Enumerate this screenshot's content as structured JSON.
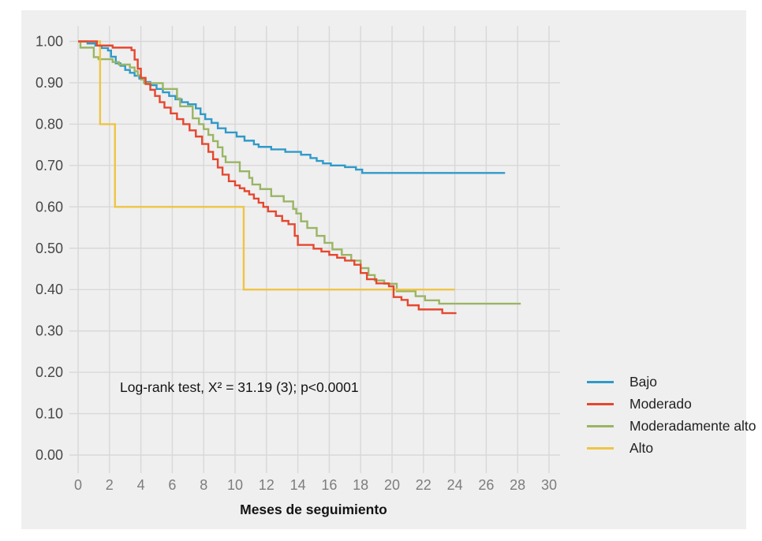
{
  "figure": {
    "panel_bg": "#EFEFEF",
    "grid_color": "#D8D8D8",
    "page_bg": "#FFFFFF"
  },
  "chart_data": {
    "type": "line",
    "subtype": "kaplan-meier-step",
    "xlabel": "Meses de seguimiento",
    "ylabel": "",
    "annotation": "Log-rank test, X² = 31.19 (3); p<0.0001",
    "xlim": [
      0,
      30
    ],
    "ylim": [
      0.0,
      1.0
    ],
    "x_ticks": [
      0,
      2,
      4,
      6,
      8,
      10,
      12,
      14,
      16,
      18,
      20,
      22,
      24,
      26,
      28,
      30
    ],
    "y_ticks": [
      1.0,
      0.9,
      0.8,
      0.7,
      0.6,
      0.5,
      0.4,
      0.3,
      0.2,
      0.1,
      0.0
    ],
    "grid": true,
    "legend_position": "right",
    "series": [
      {
        "name": "Bajo",
        "color": "#2F9AC9",
        "points": [
          [
            0,
            1.0
          ],
          [
            0.6,
            0.995
          ],
          [
            1.1,
            0.99
          ],
          [
            1.5,
            0.984
          ],
          [
            1.9,
            0.978
          ],
          [
            2.1,
            0.963
          ],
          [
            2.4,
            0.947
          ],
          [
            2.7,
            0.941
          ],
          [
            3.0,
            0.931
          ],
          [
            3.3,
            0.924
          ],
          [
            3.6,
            0.917
          ],
          [
            3.9,
            0.91
          ],
          [
            4.2,
            0.902
          ],
          [
            4.6,
            0.894
          ],
          [
            5.0,
            0.885
          ],
          [
            5.4,
            0.877
          ],
          [
            5.8,
            0.868
          ],
          [
            6.2,
            0.86
          ],
          [
            6.6,
            0.853
          ],
          [
            7.0,
            0.848
          ],
          [
            7.5,
            0.838
          ],
          [
            7.8,
            0.824
          ],
          [
            8.1,
            0.812
          ],
          [
            8.5,
            0.803
          ],
          [
            8.9,
            0.79
          ],
          [
            9.4,
            0.78
          ],
          [
            10.1,
            0.77
          ],
          [
            10.6,
            0.76
          ],
          [
            11.2,
            0.751
          ],
          [
            11.5,
            0.745
          ],
          [
            12.3,
            0.739
          ],
          [
            13.2,
            0.733
          ],
          [
            14.2,
            0.726
          ],
          [
            14.8,
            0.718
          ],
          [
            15.2,
            0.711
          ],
          [
            15.6,
            0.705
          ],
          [
            16.1,
            0.7
          ],
          [
            17.0,
            0.696
          ],
          [
            17.7,
            0.69
          ],
          [
            18.1,
            0.682
          ],
          [
            27.2,
            0.682
          ]
        ]
      },
      {
        "name": "Moderado",
        "color": "#E5472F",
        "points": [
          [
            0,
            1.0
          ],
          [
            1.2,
            0.99
          ],
          [
            2.2,
            0.985
          ],
          [
            3.4,
            0.979
          ],
          [
            3.6,
            0.956
          ],
          [
            3.8,
            0.934
          ],
          [
            4.0,
            0.912
          ],
          [
            4.3,
            0.897
          ],
          [
            4.6,
            0.883
          ],
          [
            4.9,
            0.868
          ],
          [
            5.2,
            0.853
          ],
          [
            5.5,
            0.84
          ],
          [
            5.9,
            0.826
          ],
          [
            6.3,
            0.812
          ],
          [
            6.7,
            0.8
          ],
          [
            7.1,
            0.785
          ],
          [
            7.5,
            0.77
          ],
          [
            7.9,
            0.752
          ],
          [
            8.3,
            0.733
          ],
          [
            8.6,
            0.715
          ],
          [
            8.9,
            0.695
          ],
          [
            9.2,
            0.678
          ],
          [
            9.6,
            0.662
          ],
          [
            10.0,
            0.652
          ],
          [
            10.3,
            0.645
          ],
          [
            10.6,
            0.638
          ],
          [
            10.9,
            0.63
          ],
          [
            11.2,
            0.62
          ],
          [
            11.5,
            0.61
          ],
          [
            11.8,
            0.6
          ],
          [
            12.1,
            0.589
          ],
          [
            12.6,
            0.578
          ],
          [
            13.0,
            0.566
          ],
          [
            13.4,
            0.558
          ],
          [
            13.8,
            0.53
          ],
          [
            14.0,
            0.508
          ],
          [
            15.0,
            0.499
          ],
          [
            15.5,
            0.492
          ],
          [
            16.0,
            0.484
          ],
          [
            16.5,
            0.477
          ],
          [
            17.0,
            0.47
          ],
          [
            17.6,
            0.46
          ],
          [
            18.0,
            0.44
          ],
          [
            18.4,
            0.425
          ],
          [
            19.0,
            0.415
          ],
          [
            19.8,
            0.408
          ],
          [
            20.1,
            0.382
          ],
          [
            20.6,
            0.375
          ],
          [
            21.0,
            0.362
          ],
          [
            21.7,
            0.352
          ],
          [
            23.2,
            0.343
          ],
          [
            24.1,
            0.343
          ]
        ]
      },
      {
        "name": "Moderadamente alto",
        "color": "#9AB564",
        "points": [
          [
            0,
            1.0
          ],
          [
            0.15,
            0.985
          ],
          [
            1.0,
            0.962
          ],
          [
            1.3,
            0.957
          ],
          [
            2.2,
            0.95
          ],
          [
            2.6,
            0.944
          ],
          [
            3.3,
            0.937
          ],
          [
            3.6,
            0.928
          ],
          [
            3.8,
            0.918
          ],
          [
            4.0,
            0.908
          ],
          [
            4.2,
            0.899
          ],
          [
            5.4,
            0.885
          ],
          [
            6.3,
            0.862
          ],
          [
            6.5,
            0.843
          ],
          [
            7.3,
            0.814
          ],
          [
            7.7,
            0.8
          ],
          [
            8.0,
            0.788
          ],
          [
            8.3,
            0.774
          ],
          [
            8.6,
            0.759
          ],
          [
            8.9,
            0.744
          ],
          [
            9.2,
            0.722
          ],
          [
            9.4,
            0.708
          ],
          [
            10.3,
            0.686
          ],
          [
            10.9,
            0.67
          ],
          [
            11.1,
            0.654
          ],
          [
            11.6,
            0.643
          ],
          [
            12.3,
            0.626
          ],
          [
            13.1,
            0.613
          ],
          [
            13.7,
            0.595
          ],
          [
            13.9,
            0.584
          ],
          [
            14.2,
            0.565
          ],
          [
            14.6,
            0.549
          ],
          [
            15.2,
            0.53
          ],
          [
            15.7,
            0.513
          ],
          [
            16.2,
            0.497
          ],
          [
            16.8,
            0.484
          ],
          [
            17.4,
            0.47
          ],
          [
            18.0,
            0.452
          ],
          [
            18.5,
            0.435
          ],
          [
            18.9,
            0.422
          ],
          [
            19.5,
            0.414
          ],
          [
            20.3,
            0.396
          ],
          [
            21.5,
            0.384
          ],
          [
            22.1,
            0.374
          ],
          [
            23.0,
            0.366
          ],
          [
            28.2,
            0.366
          ]
        ]
      },
      {
        "name": "Alto",
        "color": "#EFC444",
        "points": [
          [
            0,
            1.0
          ],
          [
            1.4,
            0.8
          ],
          [
            2.35,
            0.6
          ],
          [
            10.55,
            0.4
          ],
          [
            24.0,
            0.4
          ]
        ]
      }
    ]
  }
}
